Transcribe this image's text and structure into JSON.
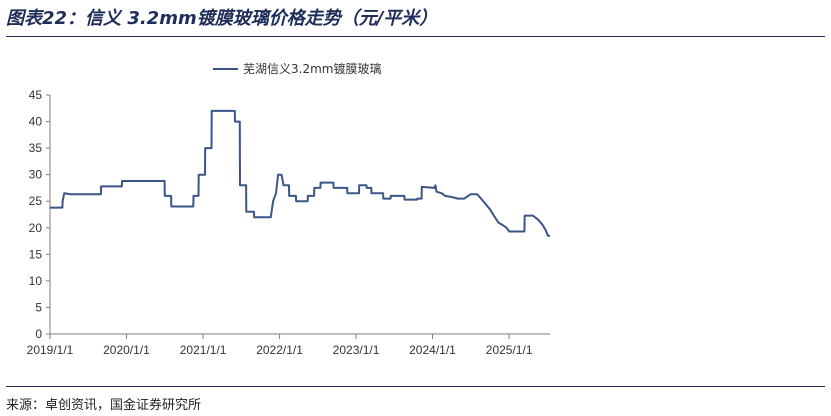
{
  "header": {
    "title": "图表22：信义 3.2mm镀膜玻璃价格走势（元/平米）"
  },
  "footer": {
    "source": "来源：卓创资讯，国金证券研究所"
  },
  "chart_data": {
    "type": "line",
    "title": "",
    "xlabel": "",
    "ylabel": "",
    "ylim": [
      0,
      45
    ],
    "yticks": [
      0,
      5,
      10,
      15,
      20,
      25,
      30,
      35,
      40,
      45
    ],
    "xticks": [
      "2019/1/1",
      "2020/1/1",
      "2021/1/1",
      "2022/1/1",
      "2023/1/1",
      "2024/1/1",
      "2025/1/1"
    ],
    "xrange": [
      "2019/1/1",
      "2025/7/15"
    ],
    "grid": false,
    "legend": "top-left",
    "color": "#3b5587",
    "series": [
      {
        "name": "芜湖信义3.2mm镀膜玻璃",
        "points": [
          [
            "2019-01-01",
            23.8
          ],
          [
            "2019-03-01",
            23.8
          ],
          [
            "2019-03-02",
            25.0
          ],
          [
            "2019-03-10",
            26.5
          ],
          [
            "2019-04-10",
            26.3
          ],
          [
            "2019-09-01",
            26.3
          ],
          [
            "2019-09-02",
            27.8
          ],
          [
            "2019-12-10",
            27.8
          ],
          [
            "2019-12-11",
            28.8
          ],
          [
            "2020-07-01",
            28.8
          ],
          [
            "2020-07-02",
            26.0
          ],
          [
            "2020-08-01",
            26.0
          ],
          [
            "2020-08-02",
            24.0
          ],
          [
            "2020-11-15",
            24.0
          ],
          [
            "2020-11-16",
            26.0
          ],
          [
            "2020-12-10",
            26.0
          ],
          [
            "2020-12-11",
            30.0
          ],
          [
            "2021-01-10",
            30.0
          ],
          [
            "2021-01-11",
            35.0
          ],
          [
            "2021-02-10",
            35.0
          ],
          [
            "2021-02-11",
            42.0
          ],
          [
            "2021-06-01",
            42.0
          ],
          [
            "2021-06-02",
            40.0
          ],
          [
            "2021-06-25",
            40.0
          ],
          [
            "2021-06-26",
            28.0
          ],
          [
            "2021-07-25",
            28.0
          ],
          [
            "2021-07-26",
            23.0
          ],
          [
            "2021-09-01",
            23.0
          ],
          [
            "2021-09-02",
            22.0
          ],
          [
            "2021-11-20",
            22.0
          ],
          [
            "2021-12-01",
            25.0
          ],
          [
            "2021-12-15",
            26.5
          ],
          [
            "2021-12-25",
            30.0
          ],
          [
            "2022-01-10",
            30.0
          ],
          [
            "2022-01-20",
            28.0
          ],
          [
            "2022-02-15",
            28.0
          ],
          [
            "2022-02-16",
            26.0
          ],
          [
            "2022-03-20",
            26.0
          ],
          [
            "2022-03-21",
            25.0
          ],
          [
            "2022-05-15",
            25.0
          ],
          [
            "2022-05-16",
            26.0
          ],
          [
            "2022-06-15",
            26.0
          ],
          [
            "2022-06-16",
            27.5
          ],
          [
            "2022-07-15",
            27.5
          ],
          [
            "2022-07-16",
            28.5
          ],
          [
            "2022-09-15",
            28.5
          ],
          [
            "2022-09-16",
            27.5
          ],
          [
            "2022-11-20",
            27.5
          ],
          [
            "2022-11-21",
            26.5
          ],
          [
            "2023-01-15",
            26.5
          ],
          [
            "2023-01-16",
            28.0
          ],
          [
            "2023-02-20",
            28.0
          ],
          [
            "2023-02-21",
            27.5
          ],
          [
            "2023-03-15",
            27.5
          ],
          [
            "2023-03-16",
            26.5
          ],
          [
            "2023-05-10",
            26.5
          ],
          [
            "2023-05-11",
            25.5
          ],
          [
            "2023-06-15",
            25.5
          ],
          [
            "2023-06-16",
            26.0
          ],
          [
            "2023-08-20",
            26.0
          ],
          [
            "2023-08-21",
            25.3
          ],
          [
            "2023-10-20",
            25.3
          ],
          [
            "2023-10-21",
            25.5
          ],
          [
            "2023-11-10",
            25.5
          ],
          [
            "2023-11-11",
            27.7
          ],
          [
            "2024-01-10",
            27.5
          ],
          [
            "2024-01-15",
            28.0
          ],
          [
            "2024-01-20",
            26.8
          ],
          [
            "2024-02-15",
            26.5
          ],
          [
            "2024-03-01",
            26.0
          ],
          [
            "2024-04-01",
            25.8
          ],
          [
            "2024-05-01",
            25.5
          ],
          [
            "2024-06-01",
            25.5
          ],
          [
            "2024-07-01",
            26.3
          ],
          [
            "2024-08-01",
            26.3
          ],
          [
            "2024-08-20",
            25.5
          ],
          [
            "2024-09-10",
            24.5
          ],
          [
            "2024-10-01",
            23.5
          ],
          [
            "2024-10-20",
            22.3
          ],
          [
            "2024-11-10",
            21.0
          ],
          [
            "2024-12-01",
            20.5
          ],
          [
            "2024-12-20",
            20.0
          ],
          [
            "2025-01-01",
            19.3
          ],
          [
            "2025-03-15",
            19.3
          ],
          [
            "2025-03-16",
            22.3
          ],
          [
            "2025-04-25",
            22.3
          ],
          [
            "2025-05-20",
            21.5
          ],
          [
            "2025-06-10",
            20.5
          ],
          [
            "2025-06-25",
            19.5
          ],
          [
            "2025-07-05",
            18.5
          ],
          [
            "2025-07-15",
            18.5
          ]
        ]
      }
    ]
  }
}
